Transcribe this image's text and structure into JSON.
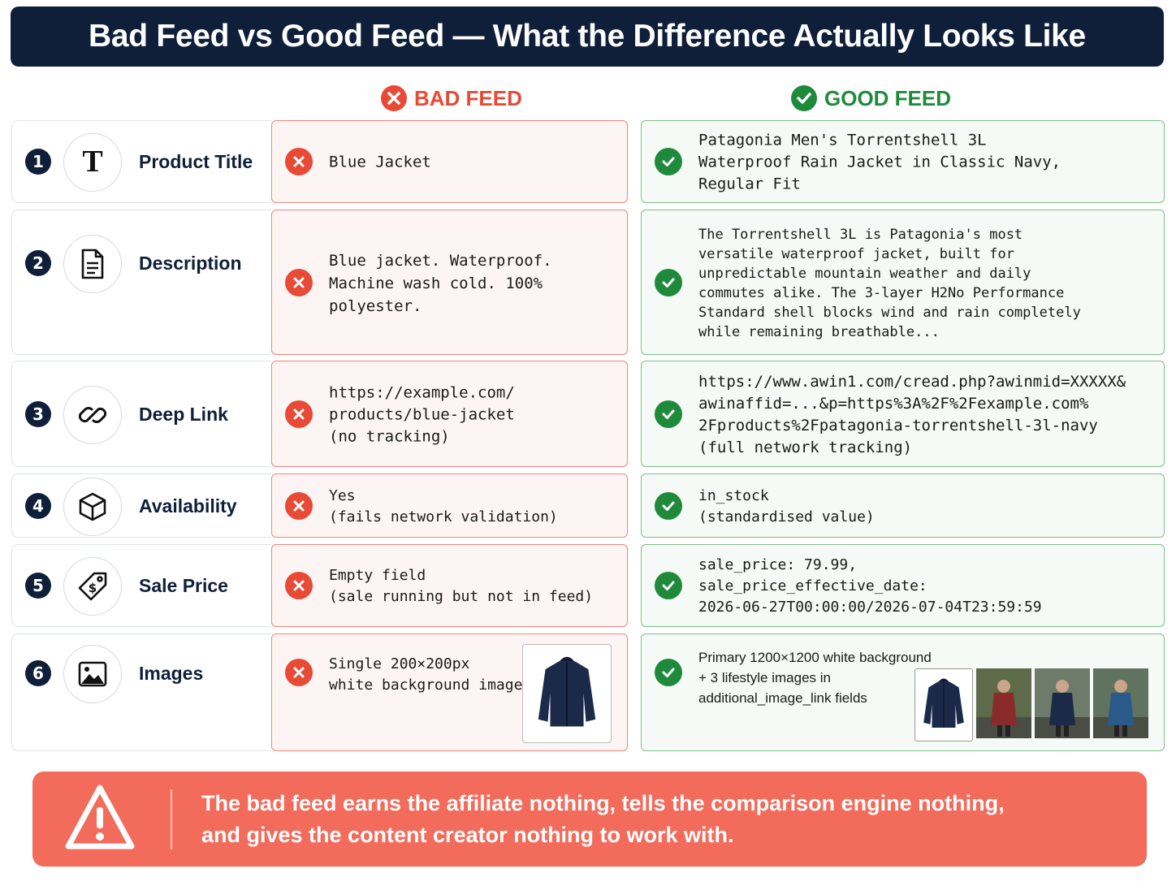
{
  "header": {
    "title": "Bad Feed vs Good Feed — What the Difference Actually Looks Like"
  },
  "columns": {
    "bad": "BAD FEED",
    "good": "GOOD FEED"
  },
  "rows": [
    {
      "number": 1,
      "label": "Product Title",
      "bad": [
        "Blue Jacket"
      ],
      "good": [
        "Patagonia Men's Torrentshell 3L",
        "Waterproof Rain Jacket in Classic Navy,",
        "Regular Fit"
      ]
    },
    {
      "number": 2,
      "label": "Description",
      "bad": [
        "Blue jacket. Waterproof.",
        "Machine wash cold. 100%",
        "polyester."
      ],
      "good": [
        "The Torrentshell 3L is Patagonia's most",
        "versatile waterproof jacket, built for",
        "unpredictable mountain weather and daily",
        "commutes alike. The 3-layer H2No Performance",
        "Standard shell blocks wind and rain completely",
        "while remaining breathable..."
      ]
    },
    {
      "number": 3,
      "label": "Deep Link",
      "bad": [
        "https://example.com/",
        "products/blue-jacket",
        "(no tracking)"
      ],
      "good": [
        "https://www.awin1.com/cread.php?awinmid=XXXXX&",
        "awinaffid=...&p=https%3A%2F%2Fexample.com%",
        "2Fproducts%2Fpatagonia-torrentshell-3l-navy",
        "(full network tracking)"
      ]
    },
    {
      "number": 4,
      "label": "Availability",
      "bad": [
        "Yes",
        "(fails network validation)"
      ],
      "good": [
        "in_stock",
        "(standardised value)"
      ]
    },
    {
      "number": 5,
      "label": "Sale Price",
      "bad": [
        "Empty field",
        "(sale running but not in feed)"
      ],
      "good": [
        "sale_price: 79.99,",
        "sale_price_effective_date:",
        "2026-06-27T00:00:00/2026-07-04T23:59:59"
      ]
    },
    {
      "number": 6,
      "label": "Images",
      "bad": [
        "Single 200×200px",
        "white background image"
      ],
      "good": [
        "Primary 1200×1200 white background",
        "+ 3 lifestyle images in",
        "additional_image_link fields"
      ]
    }
  ],
  "footer": {
    "lines": [
      "The bad feed earns the affiliate nothing, tells the comparison engine nothing,",
      "and gives the content creator nothing to work with."
    ]
  }
}
